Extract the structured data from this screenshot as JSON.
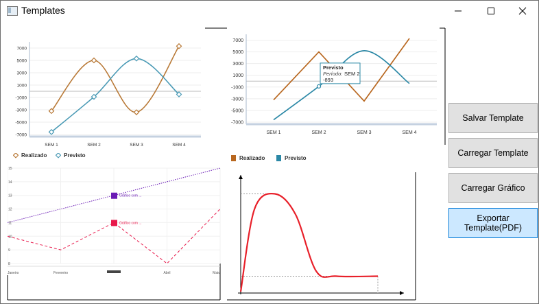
{
  "window": {
    "title": "Templates",
    "icon": "app-window-icon"
  },
  "controls": {
    "minimize": "—",
    "maximize": "☐",
    "close": "✕"
  },
  "buttons": {
    "save": "Salvar Template",
    "load_template": "Carregar Template",
    "load_chart": "Carregar Gráfico",
    "export": "Exportar Template(PDF)"
  },
  "chart_data": [
    {
      "type": "line",
      "categories": [
        "SEM 1",
        "SEM 2",
        "SEM 3",
        "SEM 4"
      ],
      "ylim": [
        -7000,
        8000
      ],
      "yticks": [
        "7000",
        "5000",
        "3000",
        "1000",
        "-1000",
        "-3000",
        "-5000",
        "-7000"
      ],
      "series": [
        {
          "name": "Realizado",
          "values": [
            -3200,
            5000,
            -3400,
            7300
          ],
          "color": "#b97a38"
        },
        {
          "name": "Previsto",
          "values": [
            -6600,
            -900,
            5300,
            -500
          ],
          "color": "#4a9ab5"
        }
      ],
      "legend": "bottom-left",
      "smooth": true
    },
    {
      "type": "line",
      "categories": [
        "SEM 1",
        "SEM 2",
        "SEM 3",
        "SEM 4"
      ],
      "ylim": [
        -7000,
        8000
      ],
      "yticks": [
        "7000",
        "5000",
        "3000",
        "1000",
        "-1000",
        "-3000",
        "-5000",
        "-7000"
      ],
      "series": [
        {
          "name": "Realizado",
          "values": [
            -3200,
            5000,
            -3400,
            7300
          ],
          "color": "#b8671f"
        },
        {
          "name": "Previsto",
          "values": [
            -6600,
            -893,
            5200,
            -400
          ],
          "color": "#2b88a6"
        }
      ],
      "tooltip": {
        "title": "Previsto",
        "label": "Período:",
        "category": "SEM 2",
        "value": "-893"
      },
      "legend": "bottom-left"
    },
    {
      "type": "line",
      "categories": [
        "Janeiro",
        "Fevereiro",
        "Março",
        "Abril",
        "Maio"
      ],
      "ylim": [
        8,
        15
      ],
      "yticks": [
        "15",
        "14",
        "13",
        "12",
        "11",
        "10",
        "9",
        "8"
      ],
      "series": [
        {
          "name": "Gráfico com ...",
          "values": [
            11,
            12,
            13,
            14,
            15
          ],
          "color": "#6a1bb5",
          "style": "dotted"
        },
        {
          "name": "Gráfico com ...",
          "values": [
            10,
            9,
            11,
            8,
            12
          ],
          "color": "#e8174a",
          "style": "dashed"
        }
      ],
      "legend": "none"
    },
    {
      "type": "area",
      "x": [
        0,
        0.1,
        0.25,
        0.4,
        0.55,
        0.7,
        1
      ],
      "values": [
        0,
        0.8,
        0.95,
        0.75,
        0.2,
        0.15,
        0.15
      ],
      "color": "#e8202a"
    }
  ]
}
